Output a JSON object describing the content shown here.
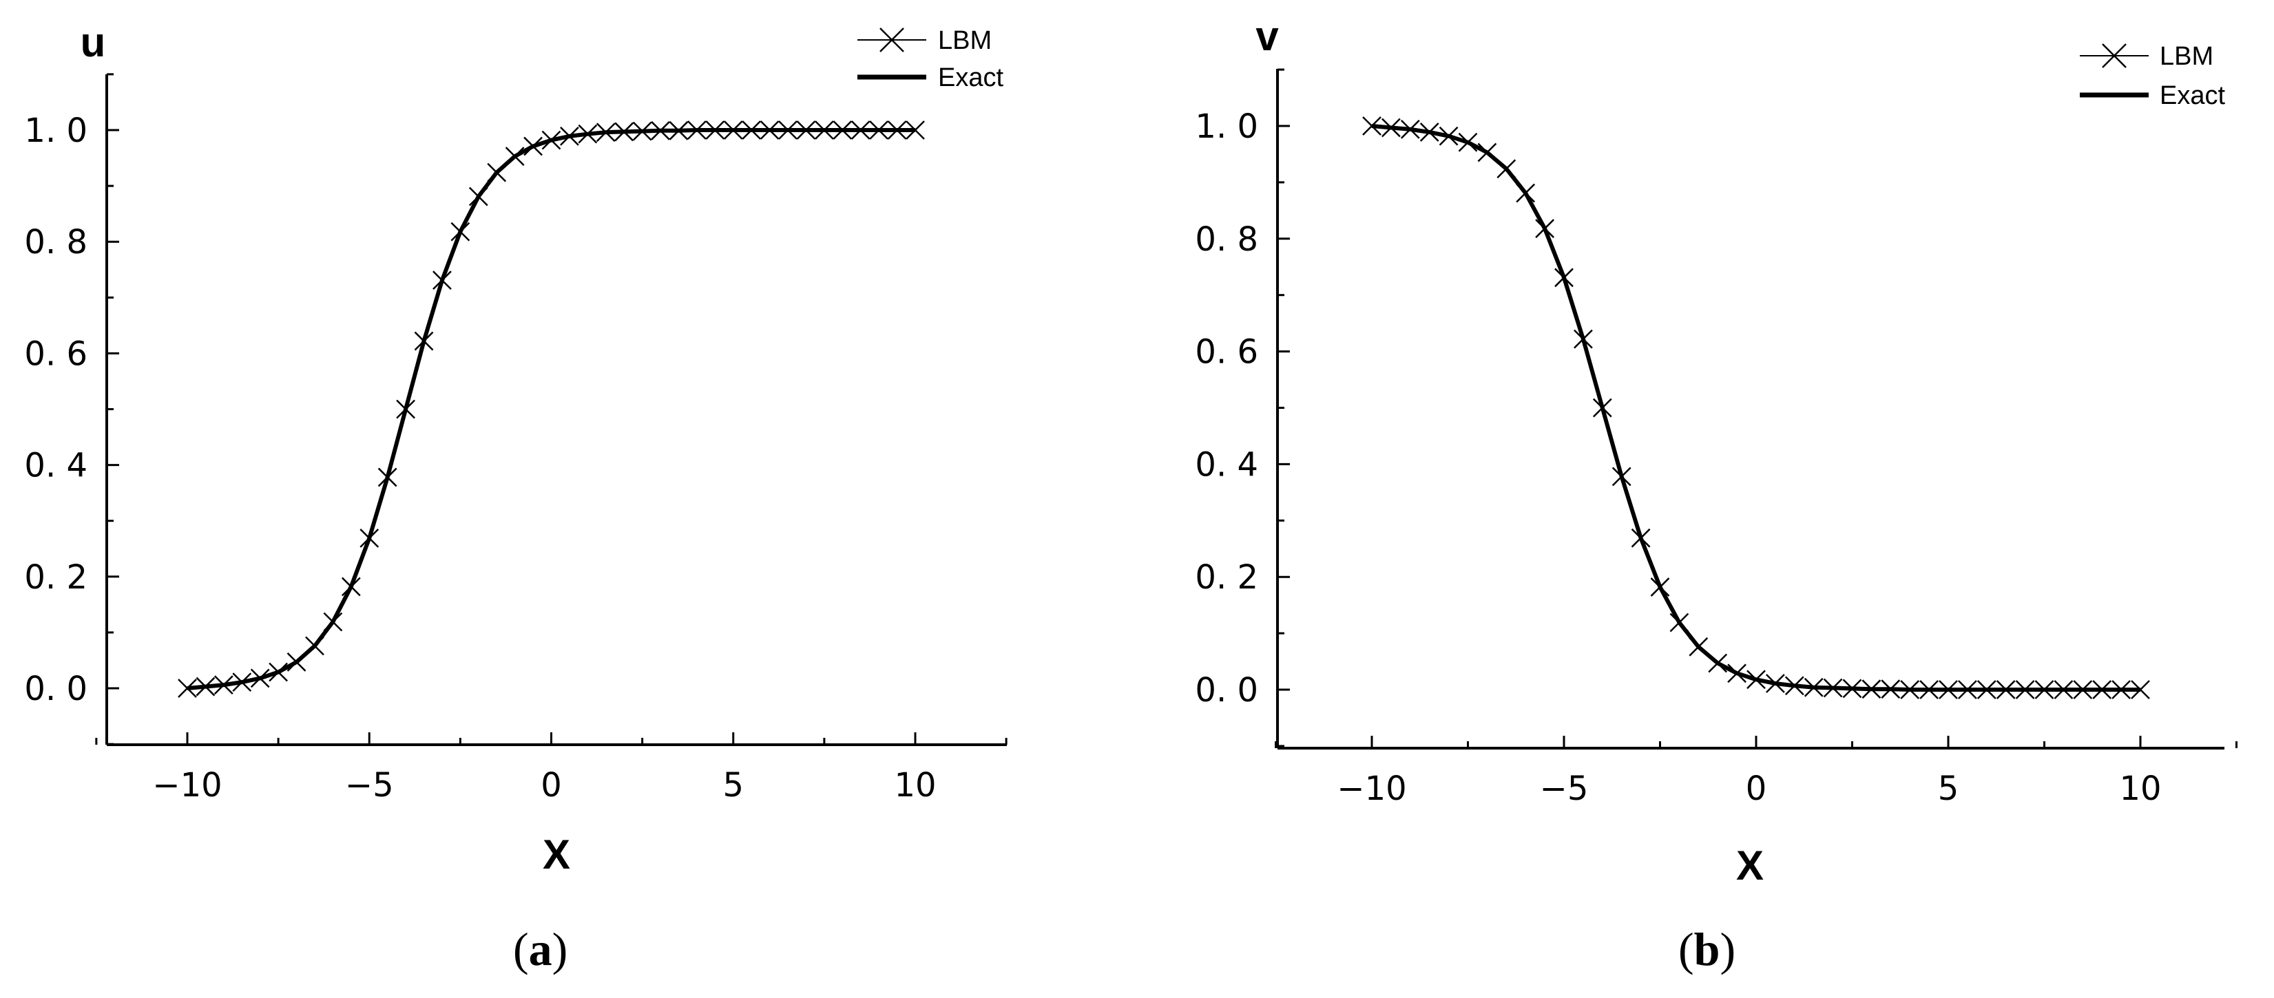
{
  "colors": {
    "line": "#000000",
    "background": "#ffffff"
  },
  "panels": [
    {
      "label_open": "(",
      "label_letter": "a",
      "label_close": ")",
      "y_title": "u",
      "x_title": "X",
      "legend": {
        "lbm": "LBM",
        "exact": "Exact"
      }
    },
    {
      "label_open": "(",
      "label_letter": "b",
      "label_close": ")",
      "y_title": "v",
      "x_title": "X",
      "legend": {
        "lbm": "LBM",
        "exact": "Exact"
      }
    }
  ],
  "chart_data": [
    {
      "type": "line",
      "xlabel": "X",
      "ylabel": "u",
      "xlim": [
        -12.5,
        12.5
      ],
      "ylim": [
        -0.1,
        1.1
      ],
      "x_ticks": [
        "−10",
        "−5",
        "0",
        "5",
        "10"
      ],
      "x_tick_values": [
        -10,
        -5,
        0,
        5,
        10
      ],
      "y_ticks": [
        "0. 0",
        "0. 2",
        "0. 4",
        "0. 6",
        "0. 8",
        "1. 0"
      ],
      "y_tick_values": [
        0.0,
        0.2,
        0.4,
        0.6,
        0.8,
        1.0
      ],
      "legend_position": "top-right",
      "series": [
        {
          "name": "LBM",
          "marker": "x",
          "x": [
            -10,
            -9.5,
            -9,
            -8.5,
            -8,
            -7.5,
            -7,
            -6.5,
            -6,
            -5.5,
            -5,
            -4.5,
            -4,
            -3.5,
            -3,
            -2.5,
            -2,
            -1.5,
            -1,
            -0.5,
            0,
            0.5,
            1,
            1.5,
            2,
            2.5,
            3,
            3.5,
            4,
            4.5,
            5,
            5.5,
            6,
            6.5,
            7,
            7.5,
            8,
            8.5,
            9,
            9.5,
            10
          ],
          "y": [
            0.0,
            0.003,
            0.006,
            0.011,
            0.018,
            0.029,
            0.047,
            0.076,
            0.119,
            0.182,
            0.269,
            0.378,
            0.5,
            0.622,
            0.731,
            0.818,
            0.881,
            0.924,
            0.953,
            0.971,
            0.982,
            0.989,
            0.993,
            0.996,
            0.997,
            0.998,
            0.999,
            0.999,
            1.0,
            1.0,
            1.0,
            1.0,
            1.0,
            1.0,
            1.0,
            1.0,
            1.0,
            1.0,
            1.0,
            1.0,
            1.0
          ]
        },
        {
          "name": "Exact",
          "marker": "none",
          "x": [
            -10,
            -9.5,
            -9,
            -8.5,
            -8,
            -7.5,
            -7,
            -6.5,
            -6,
            -5.5,
            -5,
            -4.5,
            -4,
            -3.5,
            -3,
            -2.5,
            -2,
            -1.5,
            -1,
            -0.5,
            0,
            0.5,
            1,
            1.5,
            2,
            2.5,
            3,
            3.5,
            4,
            4.5,
            5,
            5.5,
            6,
            6.5,
            7,
            7.5,
            8,
            8.5,
            9,
            9.5,
            10
          ],
          "y": [
            0.0,
            0.003,
            0.006,
            0.011,
            0.018,
            0.029,
            0.047,
            0.076,
            0.119,
            0.182,
            0.269,
            0.378,
            0.5,
            0.622,
            0.731,
            0.818,
            0.881,
            0.924,
            0.953,
            0.971,
            0.982,
            0.989,
            0.993,
            0.996,
            0.997,
            0.998,
            0.999,
            0.999,
            1.0,
            1.0,
            1.0,
            1.0,
            1.0,
            1.0,
            1.0,
            1.0,
            1.0,
            1.0,
            1.0,
            1.0,
            1.0
          ]
        }
      ]
    },
    {
      "type": "line",
      "xlabel": "X",
      "ylabel": "v",
      "xlim": [
        -12.5,
        12.5
      ],
      "ylim": [
        -0.1,
        1.1
      ],
      "x_ticks": [
        "−10",
        "−5",
        "0",
        "5",
        "10"
      ],
      "x_tick_values": [
        -10,
        -5,
        0,
        5,
        10
      ],
      "y_ticks": [
        "0. 0",
        "0. 2",
        "0. 4",
        "0. 6",
        "0. 8",
        "1. 0"
      ],
      "y_tick_values": [
        0.0,
        0.2,
        0.4,
        0.6,
        0.8,
        1.0
      ],
      "legend_position": "top-right",
      "series": [
        {
          "name": "LBM",
          "marker": "x",
          "x": [
            -10,
            -9.5,
            -9,
            -8.5,
            -8,
            -7.5,
            -7,
            -6.5,
            -6,
            -5.5,
            -5,
            -4.5,
            -4,
            -3.5,
            -3,
            -2.5,
            -2,
            -1.5,
            -1,
            -0.5,
            0,
            0.5,
            1,
            1.5,
            2,
            2.5,
            3,
            3.5,
            4,
            4.5,
            5,
            5.5,
            6,
            6.5,
            7,
            7.5,
            8,
            8.5,
            9,
            9.5,
            10
          ],
          "y": [
            1.0,
            0.997,
            0.994,
            0.989,
            0.982,
            0.971,
            0.953,
            0.924,
            0.881,
            0.818,
            0.731,
            0.622,
            0.5,
            0.378,
            0.269,
            0.182,
            0.119,
            0.076,
            0.047,
            0.029,
            0.018,
            0.011,
            0.007,
            0.004,
            0.003,
            0.002,
            0.001,
            0.001,
            0.0,
            0.0,
            0.0,
            0.0,
            0.0,
            0.0,
            0.0,
            0.0,
            0.0,
            0.0,
            0.0,
            0.0,
            0.0
          ]
        },
        {
          "name": "Exact",
          "marker": "none",
          "x": [
            -10,
            -9.5,
            -9,
            -8.5,
            -8,
            -7.5,
            -7,
            -6.5,
            -6,
            -5.5,
            -5,
            -4.5,
            -4,
            -3.5,
            -3,
            -2.5,
            -2,
            -1.5,
            -1,
            -0.5,
            0,
            0.5,
            1,
            1.5,
            2,
            2.5,
            3,
            3.5,
            4,
            4.5,
            5,
            5.5,
            6,
            6.5,
            7,
            7.5,
            8,
            8.5,
            9,
            9.5,
            10
          ],
          "y": [
            1.0,
            0.997,
            0.994,
            0.989,
            0.982,
            0.971,
            0.953,
            0.924,
            0.881,
            0.818,
            0.731,
            0.622,
            0.5,
            0.378,
            0.269,
            0.182,
            0.119,
            0.076,
            0.047,
            0.029,
            0.018,
            0.011,
            0.007,
            0.004,
            0.003,
            0.002,
            0.001,
            0.001,
            0.0,
            0.0,
            0.0,
            0.0,
            0.0,
            0.0,
            0.0,
            0.0,
            0.0,
            0.0,
            0.0,
            0.0,
            0.0
          ]
        }
      ]
    }
  ]
}
